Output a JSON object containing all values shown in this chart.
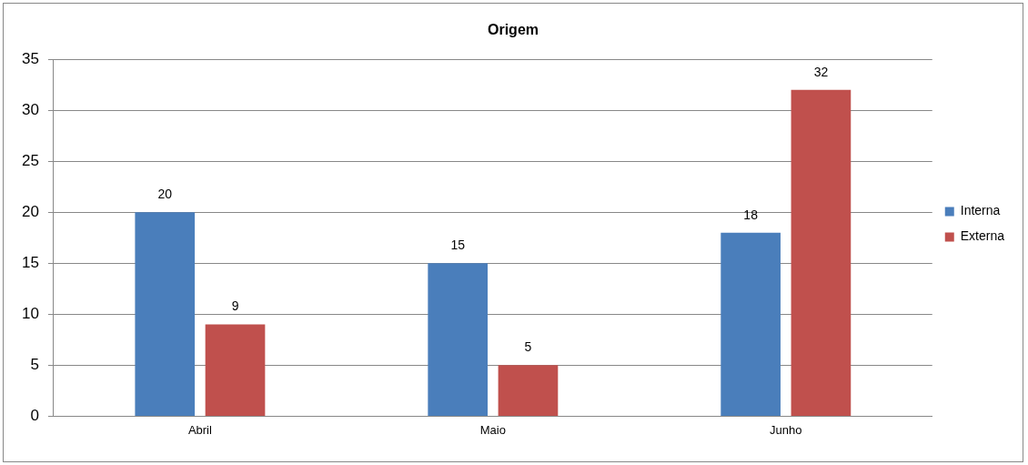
{
  "chart_data": {
    "type": "bar",
    "title": "Origem",
    "categories": [
      "Abril",
      "Maio",
      "Junho"
    ],
    "series": [
      {
        "name": "Interna",
        "color": "#4a7ebb",
        "values": [
          20,
          15,
          18
        ]
      },
      {
        "name": "Externa",
        "color": "#c0504d",
        "values": [
          9,
          5,
          32
        ]
      }
    ],
    "ylim": [
      0,
      35
    ],
    "yticks": [
      0,
      5,
      10,
      15,
      20,
      25,
      30,
      35
    ],
    "grid": "y",
    "legend": "right",
    "data_labels": true
  }
}
